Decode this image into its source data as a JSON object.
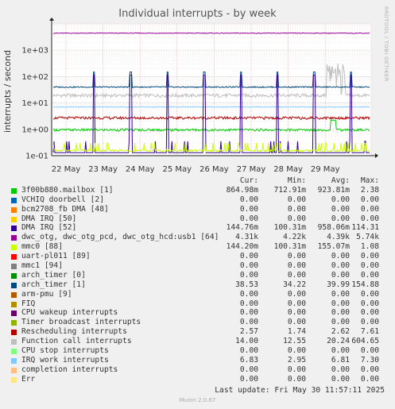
{
  "chart_data": {
    "type": "line",
    "title": "Individual interrupts - by week",
    "ylabel": "interrupts / second",
    "side_text": "RRDTOOL / TOBI OETIKER",
    "yscale": "log",
    "ylim": [
      0.1,
      10000
    ],
    "y_ticks": [
      "1e-01",
      "1e+00",
      "1e+01",
      "1e+02",
      "1e+03"
    ],
    "x_ticks": [
      "22 May",
      "23 May",
      "24 May",
      "25 May",
      "26 May",
      "27 May",
      "28 May",
      "29 May"
    ],
    "grid": true,
    "columns": [
      "Cur:",
      "Min:",
      "Avg:",
      "Max:"
    ],
    "series": [
      {
        "name": "3f00b880.mailbox [1]",
        "color": "#00cc00",
        "cur": "864.98m",
        "min": "712.91m",
        "avg": "923.81m",
        "max": "2.38"
      },
      {
        "name": "VCHIQ doorbell [2]",
        "color": "#0066b3",
        "cur": "0.00",
        "min": "0.00",
        "avg": "0.00",
        "max": "0.00"
      },
      {
        "name": "bcm2708_fb DMA [48]",
        "color": "#ff8000",
        "cur": "0.00",
        "min": "0.00",
        "avg": "0.00",
        "max": "0.00"
      },
      {
        "name": "DMA IRQ [50]",
        "color": "#ffcc00",
        "cur": "0.00",
        "min": "0.00",
        "avg": "0.00",
        "max": "0.00"
      },
      {
        "name": "DMA IRQ [52]",
        "color": "#330099",
        "cur": "144.76m",
        "min": "100.31m",
        "avg": "958.06m",
        "max": "114.31"
      },
      {
        "name": "dwc_otg, dwc_otg_pcd, dwc_otg_hcd:usb1 [64]",
        "color": "#990099",
        "cur": "4.31k",
        "min": "4.22k",
        "avg": "4.39k",
        "max": "5.74k"
      },
      {
        "name": "mmc0 [88]",
        "color": "#ccff00",
        "cur": "144.20m",
        "min": "100.31m",
        "avg": "155.07m",
        "max": "1.08"
      },
      {
        "name": "uart-pl011 [89]",
        "color": "#ff0000",
        "cur": "0.00",
        "min": "0.00",
        "avg": "0.00",
        "max": "0.00"
      },
      {
        "name": "mmc1 [94]",
        "color": "#808080",
        "cur": "0.00",
        "min": "0.00",
        "avg": "0.00",
        "max": "0.00"
      },
      {
        "name": "arch_timer [0]",
        "color": "#008f00",
        "cur": "0.00",
        "min": "0.00",
        "avg": "0.00",
        "max": "0.00"
      },
      {
        "name": "arch_timer [1]",
        "color": "#00487d",
        "cur": "38.53",
        "min": "34.22",
        "avg": "39.99",
        "max": "154.88"
      },
      {
        "name": "arm-pmu [9]",
        "color": "#b35a00",
        "cur": "0.00",
        "min": "0.00",
        "avg": "0.00",
        "max": "0.00"
      },
      {
        "name": "FIQ",
        "color": "#b38f00",
        "cur": "0.00",
        "min": "0.00",
        "avg": "0.00",
        "max": "0.00"
      },
      {
        "name": "CPU wakeup interrupts",
        "color": "#6b006b",
        "cur": "0.00",
        "min": "0.00",
        "avg": "0.00",
        "max": "0.00"
      },
      {
        "name": "Timer broadcast interrupts",
        "color": "#8fb300",
        "cur": "0.00",
        "min": "0.00",
        "avg": "0.00",
        "max": "0.00"
      },
      {
        "name": "Rescheduling interrupts",
        "color": "#b30000",
        "cur": "2.57",
        "min": "1.74",
        "avg": "2.62",
        "max": "7.61"
      },
      {
        "name": "Function call interrupts",
        "color": "#bebebe",
        "cur": "14.00",
        "min": "12.55",
        "avg": "20.24",
        "max": "604.65"
      },
      {
        "name": "CPU stop interrupts",
        "color": "#80ff80",
        "cur": "0.00",
        "min": "0.00",
        "avg": "0.00",
        "max": "0.00"
      },
      {
        "name": "IRQ work interrupts",
        "color": "#80c9ff",
        "cur": "6.83",
        "min": "2.95",
        "avg": "6.81",
        "max": "7.30"
      },
      {
        "name": "completion interrupts",
        "color": "#ffc080",
        "cur": "0.00",
        "min": "0.00",
        "avg": "0.00",
        "max": "0.00"
      },
      {
        "name": "Err",
        "color": "#ffe680",
        "cur": "0.00",
        "min": "0.00",
        "avg": "0.00",
        "max": "0.00"
      }
    ],
    "last_update": "Last update: Fri May 30 11:57:11 2025",
    "footer": "Munin 2.0.67"
  }
}
